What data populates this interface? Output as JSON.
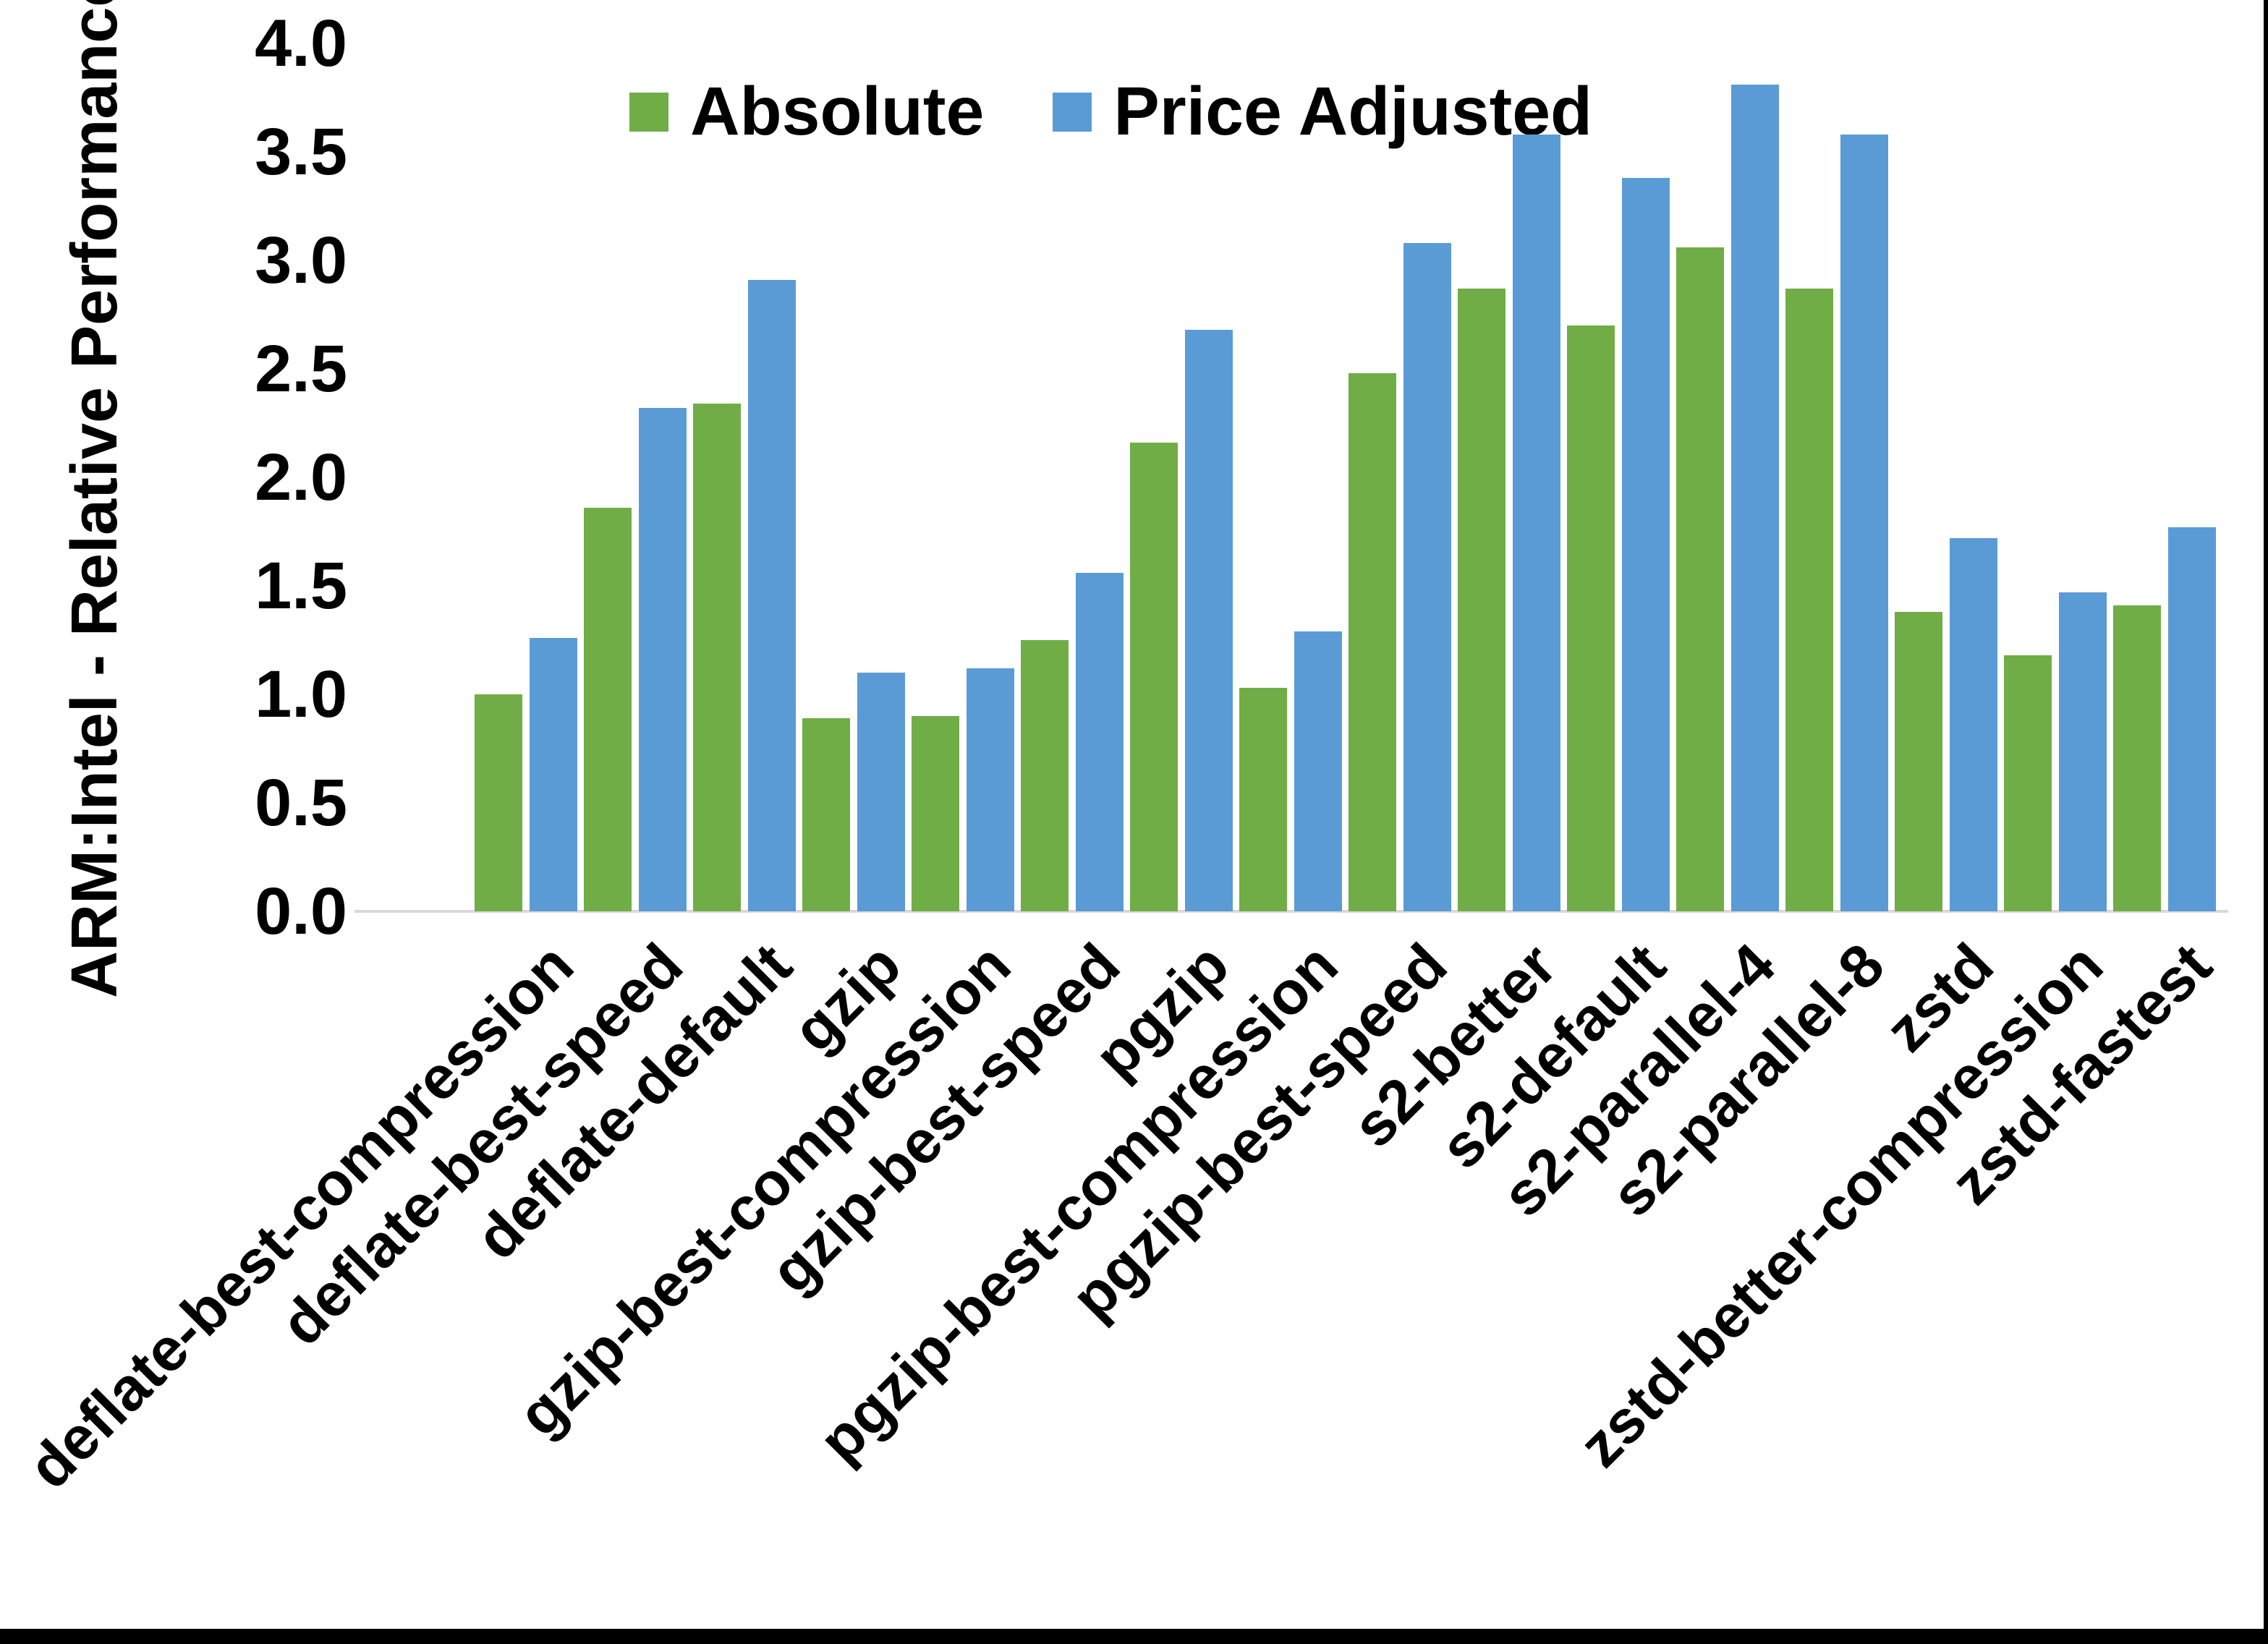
{
  "y_axis": {
    "title": "ARM:Intel - Relative Performance",
    "tick_labels": [
      "0.0",
      "0.5",
      "1.0",
      "1.5",
      "2.0",
      "2.5",
      "3.0",
      "3.5",
      "4.0"
    ]
  },
  "legend": {
    "items": [
      {
        "label": "Absolute",
        "color": "#70AD47"
      },
      {
        "label": "Price Adjusted",
        "color": "#5B9BD5"
      }
    ]
  },
  "colors": {
    "axis_line": "#d9d9d9",
    "text": "#000000",
    "background": "#ffffff",
    "border": "#000000"
  },
  "chart_data": {
    "type": "bar",
    "title": "",
    "xlabel": "",
    "ylabel": "ARM:Intel - Relative Performance",
    "ylim": [
      0.0,
      4.0
    ],
    "ytick_step": 0.5,
    "grid": false,
    "legend_position": "top-center",
    "categories": [
      "deflate-best-compression",
      "deflate-best-speed",
      "deflate-default",
      "gzip",
      "gzip-best-compression",
      "gzip-best-speed",
      "pgzip",
      "pgzip-best-compression",
      "pgzip-best-speed",
      "s2-better",
      "s2-default",
      "s2-parallel-4",
      "s2-parallel-8",
      "zstd",
      "zstd-better-compression",
      "zstd-fastest"
    ],
    "series": [
      {
        "name": "Absolute",
        "color": "#70AD47",
        "values": [
          1.0,
          1.86,
          2.34,
          0.89,
          0.9,
          1.25,
          2.16,
          1.03,
          2.48,
          2.87,
          2.7,
          3.06,
          2.87,
          1.38,
          1.18,
          1.41
        ]
      },
      {
        "name": "Price Adjusted",
        "color": "#5B9BD5",
        "values": [
          1.26,
          2.32,
          2.91,
          1.1,
          1.12,
          1.56,
          2.68,
          1.29,
          3.08,
          3.58,
          3.38,
          3.81,
          3.58,
          1.72,
          1.47,
          1.77
        ]
      }
    ]
  }
}
